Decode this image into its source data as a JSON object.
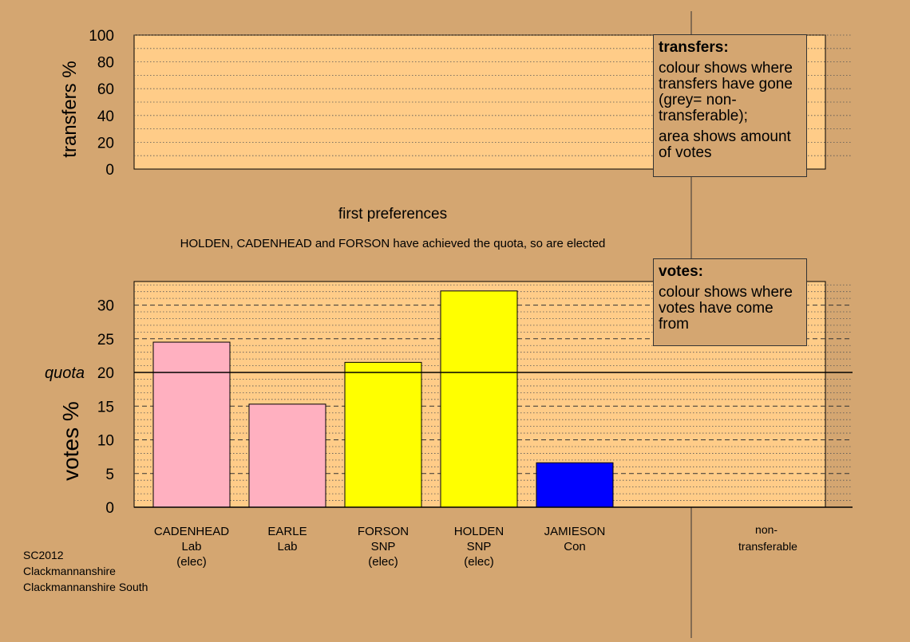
{
  "colors": {
    "background": "#d4a671",
    "plot_fill": "#ffcc88",
    "Lab": "#ffb0c0",
    "SNP": "#ffff00",
    "Con": "#0000ff"
  },
  "transfers_panel": {
    "ylabel": "transfers %",
    "ticks": [
      "0",
      "20",
      "40",
      "60",
      "80",
      "100"
    ],
    "legend": {
      "title": "transfers:",
      "text1": "colour shows where transfers have gone (grey= non-transferable);",
      "text2": "area shows amount of votes"
    }
  },
  "stage_title": "first preferences",
  "elected_note": "HOLDEN, CADENHEAD and FORSON have achieved the quota, so are elected",
  "votes_panel": {
    "ylabel": "votes %",
    "quota_label": "quota",
    "legend": {
      "title": "votes:",
      "text": "colour shows where votes have come from"
    }
  },
  "chart_data": {
    "type": "bar",
    "ylabel": "votes %",
    "ylim": [
      0,
      33.5
    ],
    "yticks": [
      0,
      5,
      10,
      15,
      20,
      25,
      30
    ],
    "quota": 20,
    "categories": [
      "CADENHEAD",
      "EARLE",
      "FORSON",
      "HOLDEN",
      "JAMIESON"
    ],
    "parties": [
      "Lab",
      "Lab",
      "SNP",
      "SNP",
      "Con"
    ],
    "status": [
      "(elec)",
      "",
      "(elec)",
      "(elec)",
      ""
    ],
    "values": [
      24.5,
      15.3,
      21.5,
      32.1,
      6.6
    ],
    "non_transferable_label": [
      "non-",
      "transferable"
    ]
  },
  "footer": {
    "line1": "SC2012",
    "line2": "Clackmannanshire",
    "line3": "Clackmannanshire South"
  }
}
